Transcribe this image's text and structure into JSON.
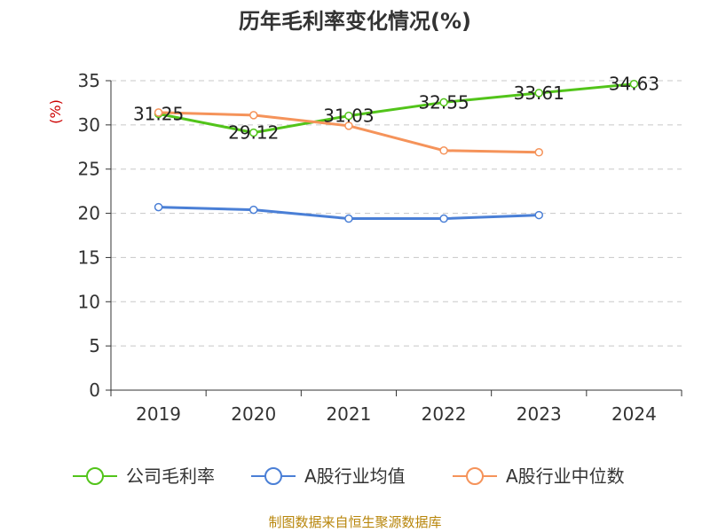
{
  "chart_data": {
    "type": "line",
    "title": "历年毛利率变化情况(%)",
    "ylabel": "(%)",
    "xlabel": "",
    "categories": [
      "2019",
      "2020",
      "2021",
      "2022",
      "2023",
      "2024"
    ],
    "ylim": [
      0,
      35
    ],
    "yticks": [
      0,
      5,
      10,
      15,
      20,
      25,
      30,
      35
    ],
    "grid": "horizontal-dashed",
    "legend_position": "bottom",
    "series": [
      {
        "name": "公司毛利率",
        "color": "#52c41a",
        "values": [
          31.25,
          29.12,
          31.03,
          32.55,
          33.61,
          34.63
        ],
        "labels": [
          "31.25",
          "29.12",
          "31.03",
          "32.55",
          "33.61",
          "34.63"
        ]
      },
      {
        "name": "A股行业均值",
        "color": "#4a7fd6",
        "values": [
          20.7,
          20.4,
          19.4,
          19.4,
          19.8,
          null
        ]
      },
      {
        "name": "A股行业中位数",
        "color": "#f5935a",
        "values": [
          31.4,
          31.1,
          29.9,
          27.1,
          26.9,
          null
        ]
      }
    ]
  },
  "footer": {
    "source": "制图数据来自恒生聚源数据库"
  }
}
